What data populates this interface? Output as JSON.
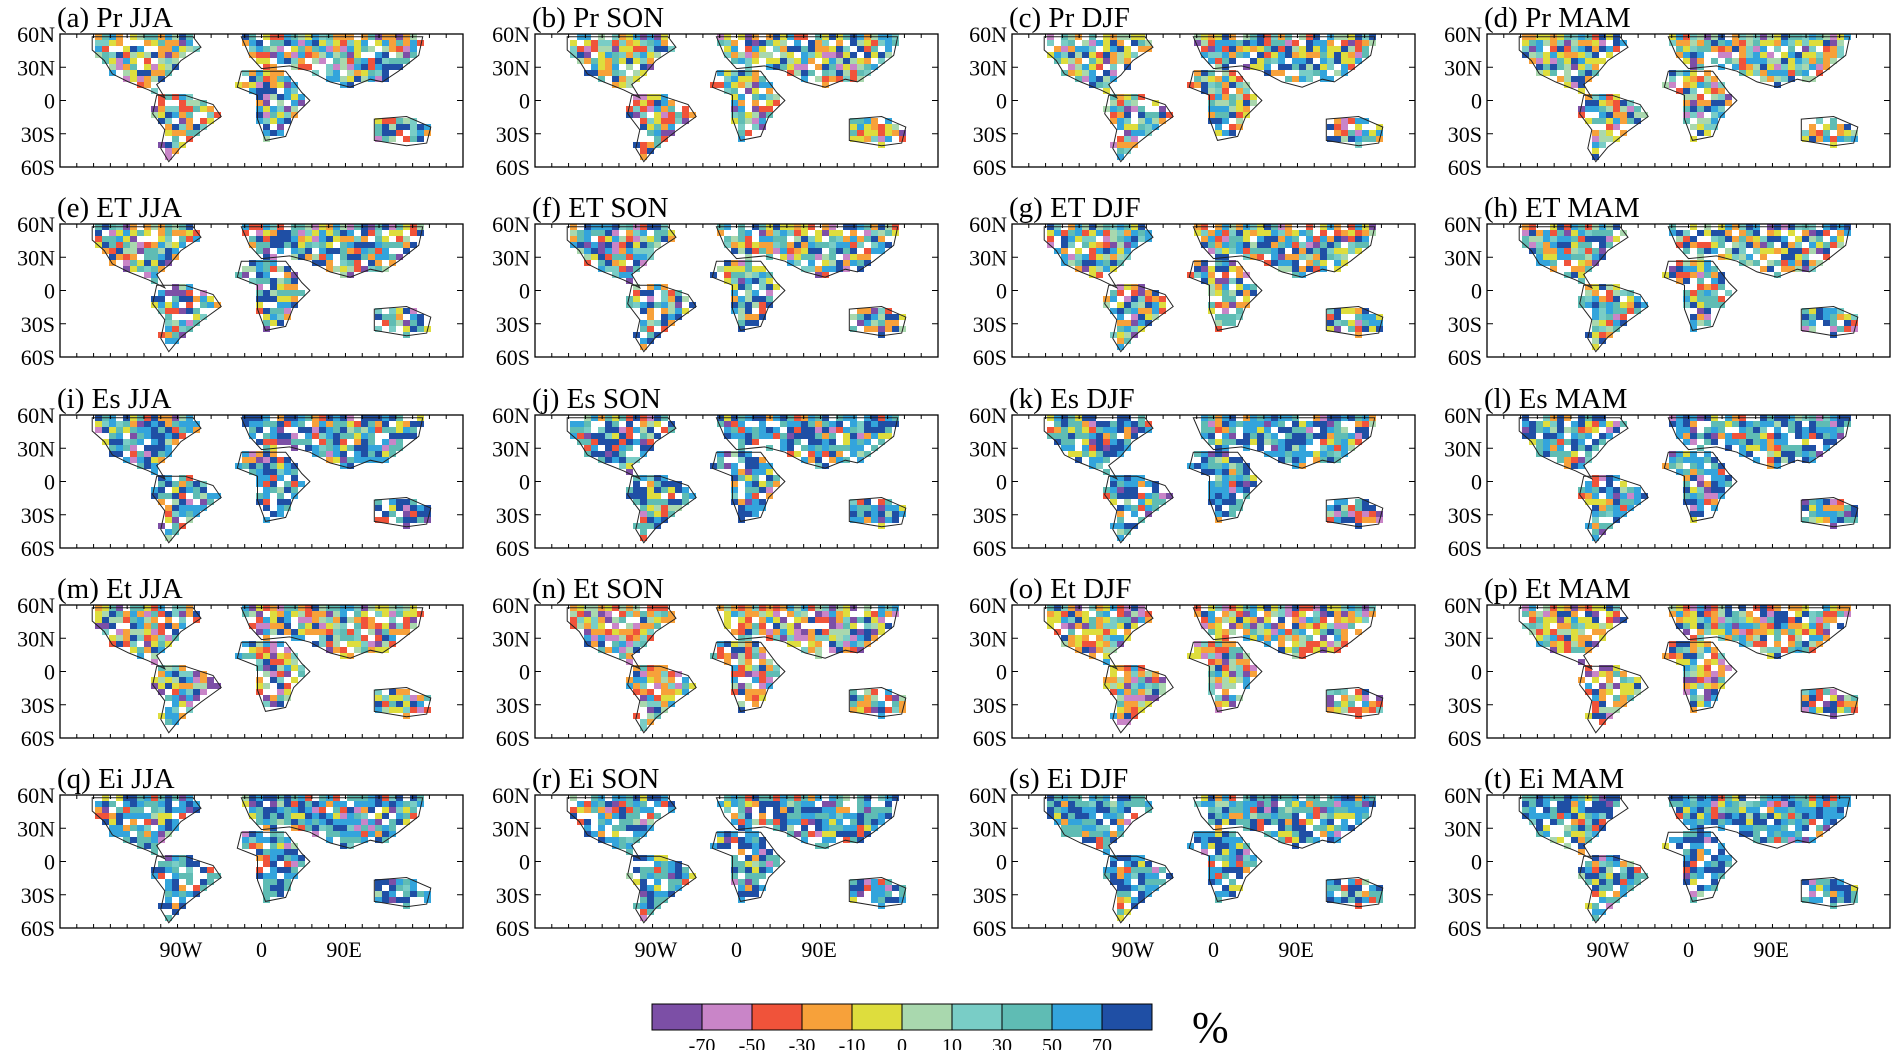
{
  "panels": [
    {
      "title": "(a) Pr JJA"
    },
    {
      "title": "(b) Pr SON"
    },
    {
      "title": "(c) Pr DJF"
    },
    {
      "title": "(d) Pr MAM"
    },
    {
      "title": "(e) ET JJA"
    },
    {
      "title": "(f) ET SON"
    },
    {
      "title": "(g) ET DJF"
    },
    {
      "title": "(h) ET MAM"
    },
    {
      "title": "(i) Es JJA"
    },
    {
      "title": "(j) Es SON"
    },
    {
      "title": "(k) Es DJF"
    },
    {
      "title": "(l) Es MAM"
    },
    {
      "title": "(m) Et JJA"
    },
    {
      "title": "(n) Et SON"
    },
    {
      "title": "(o) Et DJF"
    },
    {
      "title": "(p) Et MAM"
    },
    {
      "title": "(q) Ei JJA"
    },
    {
      "title": "(r) Ei SON"
    },
    {
      "title": "(s) Ei DJF"
    },
    {
      "title": "(t) Ei MAM"
    }
  ],
  "lat_ticks": [
    "60N",
    "30N",
    "0",
    "30S",
    "60S"
  ],
  "lon_ticks": [
    "90W",
    "0",
    "90E"
  ],
  "colorbar": {
    "colors": [
      "#7c4fa6",
      "#c985c8",
      "#f0533a",
      "#f7a13a",
      "#dedd3d",
      "#a9d8ae",
      "#79cdc6",
      "#5fbcb4",
      "#33a4dc",
      "#1f4fa5"
    ],
    "labels": [
      "-70",
      "-50",
      "-30",
      "-10",
      "0",
      "10",
      "30",
      "50",
      "70"
    ],
    "unit": "%"
  }
}
